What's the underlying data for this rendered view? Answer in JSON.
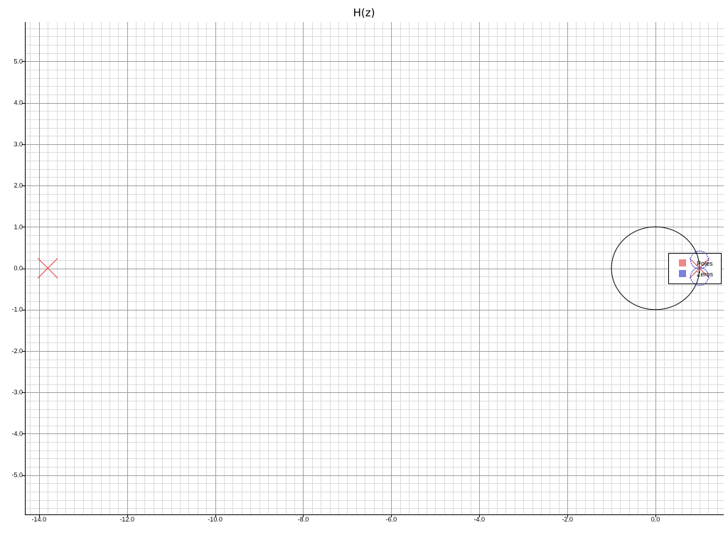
{
  "chart_data": {
    "type": "scatter",
    "title": "H(z)",
    "xlabel": "",
    "ylabel": "",
    "xlim": [
      -14.32,
      1.55
    ],
    "ylim": [
      -5.95,
      5.95
    ],
    "xticks": [
      -14,
      -12,
      -10,
      -8,
      -6,
      -4,
      -2,
      0
    ],
    "xtick_labels": [
      "-14.0",
      "-12.0",
      "-10.0",
      "-8.0",
      "-6.0",
      "-4.0",
      "-2.0",
      "0.0"
    ],
    "yticks": [
      5,
      4,
      3,
      2,
      1,
      0,
      -1,
      -2,
      -3,
      -4,
      -5
    ],
    "ytick_labels": [
      "5.0",
      "4.0",
      "3.0",
      "2.0",
      "1.0",
      "0.0",
      "-1.0",
      "-2.0",
      "-3.0",
      "-4.0",
      "-5.0"
    ],
    "grid": true,
    "unit_circle": {
      "center": [
        0,
        0
      ],
      "radius": 1,
      "color": "#000000"
    },
    "legend": {
      "position": "center-right"
    },
    "colors": {
      "grid_major": "#a0a0a0",
      "grid_minor": "#dcdcdc",
      "axis": "#000000"
    },
    "series": [
      {
        "name": "Poles",
        "marker": "x",
        "color": "#e53935",
        "points": [
          {
            "x": -13.8,
            "y": 0
          },
          {
            "x": 1.0,
            "y": 0
          }
        ]
      },
      {
        "name": "Zeros",
        "marker": "circle",
        "color": "#1f2fd1",
        "points": [
          {
            "x": 1.0,
            "y": 0.2
          },
          {
            "x": 1.0,
            "y": -0.2
          }
        ]
      }
    ]
  }
}
